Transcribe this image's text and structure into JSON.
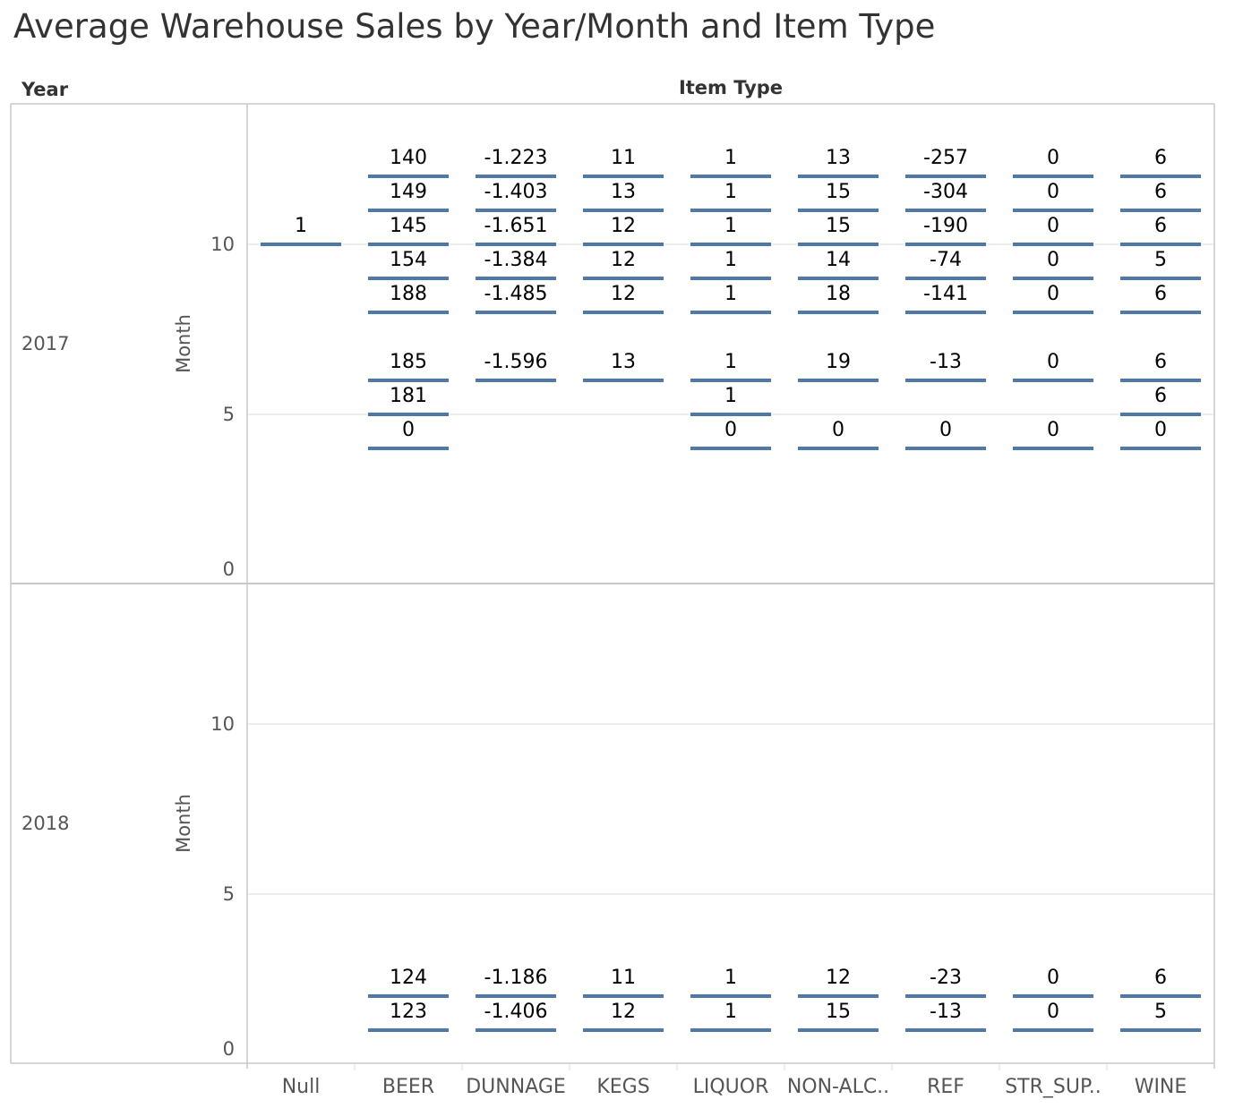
{
  "title": "Average Warehouse Sales by Year/Month and Item Type",
  "colors": {
    "mark": "#4e79a7",
    "grid": "#e6e6e6",
    "border": "#c8c8c8",
    "text": "#333333",
    "axis_text": "#666666"
  },
  "chart_data": {
    "type": "gantt",
    "row_header": "Year",
    "column_header": "Item Type",
    "ylabel": "Month",
    "ylim": [
      0,
      14
    ],
    "yticks": [
      0,
      5,
      10
    ],
    "grid": "horizontal",
    "categories": [
      "Null",
      "BEER",
      "DUNNAGE",
      "KEGS",
      "LIQUOR",
      "NON-ALC..",
      "REF",
      "STR_SUP..",
      "WINE"
    ],
    "panels": [
      {
        "year": "2017",
        "months": [
          12,
          11,
          10,
          9,
          8,
          6,
          5,
          4
        ],
        "values": {
          "Null": [
            null,
            null,
            "1",
            null,
            null,
            null,
            null,
            null
          ],
          "BEER": [
            "140",
            "149",
            "145",
            "154",
            "188",
            "185",
            "181",
            "0"
          ],
          "DUNNAGE": [
            "-1.223",
            "-1.403",
            "-1.651",
            "-1.384",
            "-1.485",
            "-1.596",
            null,
            null
          ],
          "KEGS": [
            "11",
            "13",
            "12",
            "12",
            "12",
            "13",
            null,
            null
          ],
          "LIQUOR": [
            "1",
            "1",
            "1",
            "1",
            "1",
            "1",
            "1",
            "0"
          ],
          "NON-ALC..": [
            "13",
            "15",
            "15",
            "14",
            "18",
            "19",
            null,
            "0"
          ],
          "REF": [
            "-257",
            "-304",
            "-190",
            "-74",
            "-141",
            "-13",
            null,
            "0"
          ],
          "STR_SUP..": [
            "0",
            "0",
            "0",
            "0",
            "0",
            "0",
            null,
            "0"
          ],
          "WINE": [
            "6",
            "6",
            "6",
            "5",
            "6",
            "6",
            "6",
            "0"
          ]
        }
      },
      {
        "year": "2018",
        "months": [
          2,
          1
        ],
        "values": {
          "Null": [
            null,
            null
          ],
          "BEER": [
            "124",
            "123"
          ],
          "DUNNAGE": [
            "-1.186",
            "-1.406"
          ],
          "KEGS": [
            "11",
            "12"
          ],
          "LIQUOR": [
            "1",
            "1"
          ],
          "NON-ALC..": [
            "12",
            "15"
          ],
          "REF": [
            "-23",
            "-13"
          ],
          "STR_SUP..": [
            "0",
            "0"
          ],
          "WINE": [
            "6",
            "5"
          ]
        }
      }
    ]
  }
}
